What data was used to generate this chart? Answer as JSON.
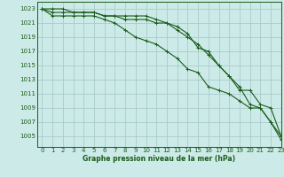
{
  "title": "Graphe pression niveau de la mer (hPa)",
  "background_color": "#cceae8",
  "grid_color": "#aacccc",
  "line_color": "#1a5c1a",
  "x_values": [
    0,
    1,
    2,
    3,
    4,
    5,
    6,
    7,
    8,
    9,
    10,
    11,
    12,
    13,
    14,
    15,
    16,
    17,
    18,
    19,
    20,
    21,
    22,
    23
  ],
  "series_max": [
    1023,
    1023,
    1023,
    1022.5,
    1022.5,
    1022.5,
    1022,
    1022,
    1021.5,
    1021.5,
    1021.5,
    1021,
    1021,
    1020.5,
    1019.5,
    1017.5,
    1017,
    1015,
    1013.5,
    1011.5,
    1011.5,
    1009.5,
    1009,
    1005
  ],
  "series_mean": [
    1023,
    1022.5,
    1022.5,
    1022.5,
    1022.5,
    1022.5,
    1022,
    1022,
    1022,
    1022,
    1022,
    1021.5,
    1021,
    1020,
    1019,
    1018,
    1016.5,
    1015,
    1013.5,
    1012,
    1009.5,
    1009,
    1007,
    1005
  ],
  "series_min": [
    1023,
    1022,
    1022,
    1022,
    1022,
    1022,
    1021.5,
    1021,
    1020,
    1019,
    1018.5,
    1018,
    1017,
    1016,
    1014.5,
    1014,
    1012,
    1011.5,
    1011,
    1010,
    1009,
    1009,
    1007,
    1004.5
  ],
  "ylim": [
    1003.5,
    1024
  ],
  "yticks": [
    1005,
    1007,
    1009,
    1011,
    1013,
    1015,
    1017,
    1019,
    1021,
    1023
  ],
  "xlim": [
    -0.5,
    23
  ],
  "xticks": [
    0,
    1,
    2,
    3,
    4,
    5,
    6,
    7,
    8,
    9,
    10,
    11,
    12,
    13,
    14,
    15,
    16,
    17,
    18,
    19,
    20,
    21,
    22,
    23
  ]
}
